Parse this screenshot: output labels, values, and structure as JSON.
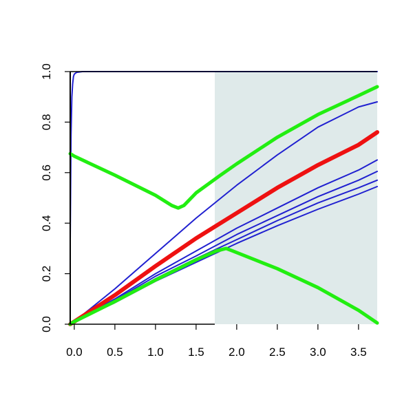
{
  "chart_data": {
    "type": "line",
    "title": "",
    "xlabel": "",
    "ylabel": "",
    "xlim": [
      -0.05,
      3.73
    ],
    "ylim": [
      0,
      1.0
    ],
    "grid": false,
    "x_ticks": [
      "0.0",
      "0.5",
      "1.0",
      "1.5",
      "2.0",
      "2.5",
      "3.0",
      "3.5"
    ],
    "x_tick_values": [
      0,
      0.5,
      1.0,
      1.5,
      2.0,
      2.5,
      3.0,
      3.5
    ],
    "y_ticks": [
      "0.0",
      "0.2",
      "0.4",
      "0.6",
      "0.8",
      "1.0"
    ],
    "y_tick_values": [
      0,
      0.2,
      0.4,
      0.6,
      0.8,
      1.0
    ],
    "shaded_region": {
      "x_from": 1.73,
      "x_to": 3.73,
      "color": "#dfeaea"
    },
    "series": [
      {
        "color": "#2020d0",
        "width": 2,
        "points": [
          [
            -0.05,
            0.33
          ],
          [
            -0.04,
            0.75
          ],
          [
            -0.03,
            0.9
          ],
          [
            -0.02,
            0.95
          ],
          [
            -0.01,
            0.98
          ],
          [
            0.0,
            0.99
          ],
          [
            0.03,
            0.997
          ],
          [
            0.1,
            1.0
          ],
          [
            3.73,
            1.0
          ]
        ]
      },
      {
        "color": "#2020d0",
        "width": 2,
        "points": [
          [
            -0.05,
            0.0
          ],
          [
            0.0,
            0.01
          ],
          [
            0.5,
            0.14
          ],
          [
            1.0,
            0.28
          ],
          [
            1.5,
            0.42
          ],
          [
            2.0,
            0.55
          ],
          [
            2.5,
            0.67
          ],
          [
            3.0,
            0.78
          ],
          [
            3.5,
            0.86
          ],
          [
            3.73,
            0.88
          ]
        ]
      },
      {
        "color": "#2020d0",
        "width": 2,
        "points": [
          [
            -0.05,
            0.0
          ],
          [
            0.0,
            0.01
          ],
          [
            0.5,
            0.1
          ],
          [
            1.0,
            0.2
          ],
          [
            1.5,
            0.29
          ],
          [
            2.0,
            0.38
          ],
          [
            2.5,
            0.46
          ],
          [
            3.0,
            0.54
          ],
          [
            3.5,
            0.61
          ],
          [
            3.73,
            0.65
          ]
        ]
      },
      {
        "color": "#2020d0",
        "width": 2,
        "points": [
          [
            -0.05,
            0.0
          ],
          [
            0.0,
            0.01
          ],
          [
            0.5,
            0.095
          ],
          [
            1.0,
            0.19
          ],
          [
            1.5,
            0.27
          ],
          [
            2.0,
            0.355
          ],
          [
            2.5,
            0.43
          ],
          [
            3.0,
            0.505
          ],
          [
            3.5,
            0.57
          ],
          [
            3.73,
            0.605
          ]
        ]
      },
      {
        "color": "#2020d0",
        "width": 2,
        "points": [
          [
            -0.05,
            0.0
          ],
          [
            0.0,
            0.01
          ],
          [
            0.5,
            0.09
          ],
          [
            1.0,
            0.18
          ],
          [
            1.5,
            0.26
          ],
          [
            2.0,
            0.335
          ],
          [
            2.5,
            0.41
          ],
          [
            3.0,
            0.48
          ],
          [
            3.5,
            0.54
          ],
          [
            3.73,
            0.57
          ]
        ]
      },
      {
        "color": "#2020d0",
        "width": 2,
        "points": [
          [
            -0.05,
            0.0
          ],
          [
            0.0,
            0.01
          ],
          [
            0.5,
            0.085
          ],
          [
            1.0,
            0.17
          ],
          [
            1.5,
            0.245
          ],
          [
            2.0,
            0.32
          ],
          [
            2.5,
            0.39
          ],
          [
            3.0,
            0.455
          ],
          [
            3.5,
            0.515
          ],
          [
            3.73,
            0.545
          ]
        ]
      },
      {
        "color": "#ee1111",
        "width": 6,
        "points": [
          [
            -0.05,
            0.0
          ],
          [
            0.0,
            0.01
          ],
          [
            0.5,
            0.115
          ],
          [
            1.0,
            0.23
          ],
          [
            1.5,
            0.34
          ],
          [
            2.0,
            0.44
          ],
          [
            2.5,
            0.54
          ],
          [
            3.0,
            0.63
          ],
          [
            3.5,
            0.71
          ],
          [
            3.73,
            0.76
          ]
        ]
      },
      {
        "color": "#22ee11",
        "width": 5,
        "points": [
          [
            -0.05,
            0.675
          ],
          [
            0.0,
            0.665
          ],
          [
            0.5,
            0.59
          ],
          [
            1.0,
            0.51
          ],
          [
            1.2,
            0.47
          ],
          [
            1.28,
            0.46
          ],
          [
            1.35,
            0.47
          ],
          [
            1.5,
            0.52
          ],
          [
            1.8,
            0.59
          ],
          [
            2.0,
            0.635
          ],
          [
            2.5,
            0.74
          ],
          [
            3.0,
            0.83
          ],
          [
            3.5,
            0.905
          ],
          [
            3.73,
            0.94
          ]
        ]
      },
      {
        "color": "#22ee11",
        "width": 5,
        "points": [
          [
            -0.05,
            0.0
          ],
          [
            0.0,
            0.01
          ],
          [
            0.5,
            0.09
          ],
          [
            1.0,
            0.175
          ],
          [
            1.5,
            0.255
          ],
          [
            1.75,
            0.29
          ],
          [
            1.87,
            0.3
          ],
          [
            1.95,
            0.29
          ],
          [
            2.5,
            0.22
          ],
          [
            3.0,
            0.145
          ],
          [
            3.5,
            0.055
          ],
          [
            3.73,
            0.005
          ]
        ]
      }
    ]
  }
}
